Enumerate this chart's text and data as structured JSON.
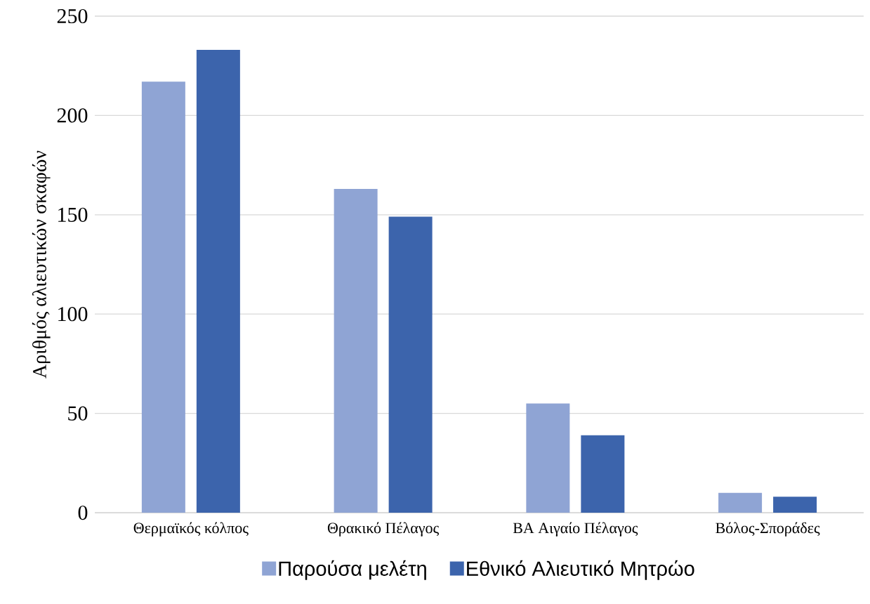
{
  "chart_data": {
    "type": "bar",
    "categories": [
      "Θερμαϊκός κόλπος",
      "Θρακικό Πέλαγος",
      "ΒΑ Αιγαίο Πέλαγος",
      "Βόλος-Σποράδες"
    ],
    "series": [
      {
        "name": "Παρούσα μελέτη",
        "color": "#8fa4d4",
        "values": [
          217,
          163,
          55,
          10
        ]
      },
      {
        "name": "Εθνικό Αλιευτικό Μητρώο",
        "color": "#3c64ac",
        "values": [
          233,
          149,
          39,
          8
        ]
      }
    ],
    "ylabel": "Αριθμός αλιευτικών σκαφών",
    "ylim": [
      0,
      250
    ],
    "yticks": [
      0,
      50,
      100,
      150,
      200,
      250
    ],
    "grid": "y",
    "legend": "bottom"
  }
}
